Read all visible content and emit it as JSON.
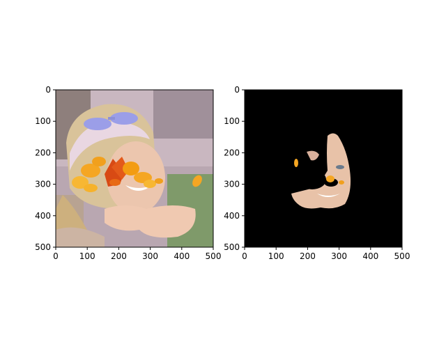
{
  "chart_data": [
    {
      "type": "image",
      "title": "",
      "xlabel": "",
      "ylabel": "",
      "xlim": [
        0,
        500
      ],
      "ylim": [
        500,
        0
      ],
      "xticks": [
        0,
        100,
        200,
        300,
        400,
        500
      ],
      "yticks": [
        0,
        100,
        200,
        300,
        400,
        500
      ],
      "content": "photo of smiling woman with headband and sunglasses, face partly covered by autumn leaves"
    },
    {
      "type": "image",
      "title": "",
      "xlabel": "",
      "ylabel": "",
      "xlim": [
        0,
        500
      ],
      "ylim": [
        500,
        0
      ],
      "xticks": [
        0,
        100,
        200,
        300,
        400,
        500
      ],
      "yticks": [
        0,
        100,
        200,
        300,
        400,
        500
      ],
      "content": "segmentation mask of visible face skin on black background, occluded by leaves"
    }
  ],
  "colors": {
    "background": "#ffffff",
    "mask_background": "#000000",
    "leaf_orange": "#f5a623",
    "leaf_red": "#d84a14",
    "skin": "#e8c2a8"
  }
}
